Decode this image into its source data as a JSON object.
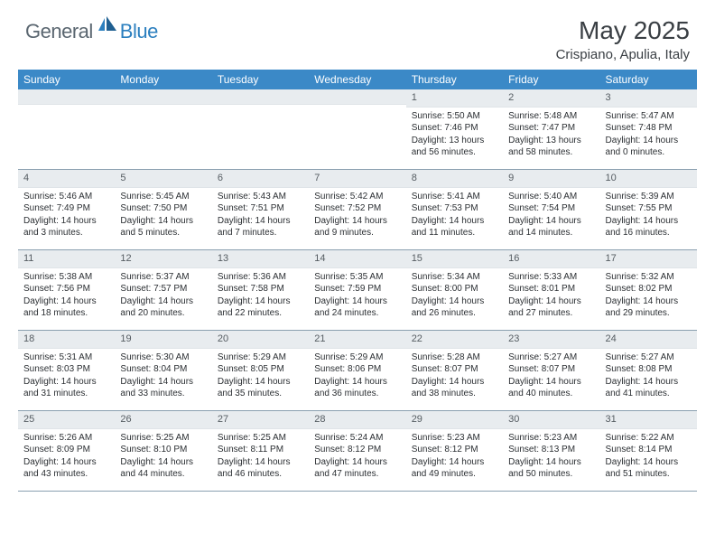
{
  "brand": {
    "general": "General",
    "blue": "Blue"
  },
  "title": "May 2025",
  "location": "Crispiano, Apulia, Italy",
  "colors": {
    "header_bar": "#3b89c7",
    "daynum_bg": "#e8ecef",
    "row_border": "#8aa0b0",
    "text": "#2b2f33",
    "title_text": "#3a3f44",
    "logo_gray": "#5a6670",
    "logo_blue": "#2b7fbf"
  },
  "day_headers": [
    "Sunday",
    "Monday",
    "Tuesday",
    "Wednesday",
    "Thursday",
    "Friday",
    "Saturday"
  ],
  "weeks": [
    [
      {
        "n": "",
        "sr": "",
        "ss": "",
        "dl": ""
      },
      {
        "n": "",
        "sr": "",
        "ss": "",
        "dl": ""
      },
      {
        "n": "",
        "sr": "",
        "ss": "",
        "dl": ""
      },
      {
        "n": "",
        "sr": "",
        "ss": "",
        "dl": ""
      },
      {
        "n": "1",
        "sr": "Sunrise: 5:50 AM",
        "ss": "Sunset: 7:46 PM",
        "dl": "Daylight: 13 hours and 56 minutes."
      },
      {
        "n": "2",
        "sr": "Sunrise: 5:48 AM",
        "ss": "Sunset: 7:47 PM",
        "dl": "Daylight: 13 hours and 58 minutes."
      },
      {
        "n": "3",
        "sr": "Sunrise: 5:47 AM",
        "ss": "Sunset: 7:48 PM",
        "dl": "Daylight: 14 hours and 0 minutes."
      }
    ],
    [
      {
        "n": "4",
        "sr": "Sunrise: 5:46 AM",
        "ss": "Sunset: 7:49 PM",
        "dl": "Daylight: 14 hours and 3 minutes."
      },
      {
        "n": "5",
        "sr": "Sunrise: 5:45 AM",
        "ss": "Sunset: 7:50 PM",
        "dl": "Daylight: 14 hours and 5 minutes."
      },
      {
        "n": "6",
        "sr": "Sunrise: 5:43 AM",
        "ss": "Sunset: 7:51 PM",
        "dl": "Daylight: 14 hours and 7 minutes."
      },
      {
        "n": "7",
        "sr": "Sunrise: 5:42 AM",
        "ss": "Sunset: 7:52 PM",
        "dl": "Daylight: 14 hours and 9 minutes."
      },
      {
        "n": "8",
        "sr": "Sunrise: 5:41 AM",
        "ss": "Sunset: 7:53 PM",
        "dl": "Daylight: 14 hours and 11 minutes."
      },
      {
        "n": "9",
        "sr": "Sunrise: 5:40 AM",
        "ss": "Sunset: 7:54 PM",
        "dl": "Daylight: 14 hours and 14 minutes."
      },
      {
        "n": "10",
        "sr": "Sunrise: 5:39 AM",
        "ss": "Sunset: 7:55 PM",
        "dl": "Daylight: 14 hours and 16 minutes."
      }
    ],
    [
      {
        "n": "11",
        "sr": "Sunrise: 5:38 AM",
        "ss": "Sunset: 7:56 PM",
        "dl": "Daylight: 14 hours and 18 minutes."
      },
      {
        "n": "12",
        "sr": "Sunrise: 5:37 AM",
        "ss": "Sunset: 7:57 PM",
        "dl": "Daylight: 14 hours and 20 minutes."
      },
      {
        "n": "13",
        "sr": "Sunrise: 5:36 AM",
        "ss": "Sunset: 7:58 PM",
        "dl": "Daylight: 14 hours and 22 minutes."
      },
      {
        "n": "14",
        "sr": "Sunrise: 5:35 AM",
        "ss": "Sunset: 7:59 PM",
        "dl": "Daylight: 14 hours and 24 minutes."
      },
      {
        "n": "15",
        "sr": "Sunrise: 5:34 AM",
        "ss": "Sunset: 8:00 PM",
        "dl": "Daylight: 14 hours and 26 minutes."
      },
      {
        "n": "16",
        "sr": "Sunrise: 5:33 AM",
        "ss": "Sunset: 8:01 PM",
        "dl": "Daylight: 14 hours and 27 minutes."
      },
      {
        "n": "17",
        "sr": "Sunrise: 5:32 AM",
        "ss": "Sunset: 8:02 PM",
        "dl": "Daylight: 14 hours and 29 minutes."
      }
    ],
    [
      {
        "n": "18",
        "sr": "Sunrise: 5:31 AM",
        "ss": "Sunset: 8:03 PM",
        "dl": "Daylight: 14 hours and 31 minutes."
      },
      {
        "n": "19",
        "sr": "Sunrise: 5:30 AM",
        "ss": "Sunset: 8:04 PM",
        "dl": "Daylight: 14 hours and 33 minutes."
      },
      {
        "n": "20",
        "sr": "Sunrise: 5:29 AM",
        "ss": "Sunset: 8:05 PM",
        "dl": "Daylight: 14 hours and 35 minutes."
      },
      {
        "n": "21",
        "sr": "Sunrise: 5:29 AM",
        "ss": "Sunset: 8:06 PM",
        "dl": "Daylight: 14 hours and 36 minutes."
      },
      {
        "n": "22",
        "sr": "Sunrise: 5:28 AM",
        "ss": "Sunset: 8:07 PM",
        "dl": "Daylight: 14 hours and 38 minutes."
      },
      {
        "n": "23",
        "sr": "Sunrise: 5:27 AM",
        "ss": "Sunset: 8:07 PM",
        "dl": "Daylight: 14 hours and 40 minutes."
      },
      {
        "n": "24",
        "sr": "Sunrise: 5:27 AM",
        "ss": "Sunset: 8:08 PM",
        "dl": "Daylight: 14 hours and 41 minutes."
      }
    ],
    [
      {
        "n": "25",
        "sr": "Sunrise: 5:26 AM",
        "ss": "Sunset: 8:09 PM",
        "dl": "Daylight: 14 hours and 43 minutes."
      },
      {
        "n": "26",
        "sr": "Sunrise: 5:25 AM",
        "ss": "Sunset: 8:10 PM",
        "dl": "Daylight: 14 hours and 44 minutes."
      },
      {
        "n": "27",
        "sr": "Sunrise: 5:25 AM",
        "ss": "Sunset: 8:11 PM",
        "dl": "Daylight: 14 hours and 46 minutes."
      },
      {
        "n": "28",
        "sr": "Sunrise: 5:24 AM",
        "ss": "Sunset: 8:12 PM",
        "dl": "Daylight: 14 hours and 47 minutes."
      },
      {
        "n": "29",
        "sr": "Sunrise: 5:23 AM",
        "ss": "Sunset: 8:12 PM",
        "dl": "Daylight: 14 hours and 49 minutes."
      },
      {
        "n": "30",
        "sr": "Sunrise: 5:23 AM",
        "ss": "Sunset: 8:13 PM",
        "dl": "Daylight: 14 hours and 50 minutes."
      },
      {
        "n": "31",
        "sr": "Sunrise: 5:22 AM",
        "ss": "Sunset: 8:14 PM",
        "dl": "Daylight: 14 hours and 51 minutes."
      }
    ]
  ]
}
